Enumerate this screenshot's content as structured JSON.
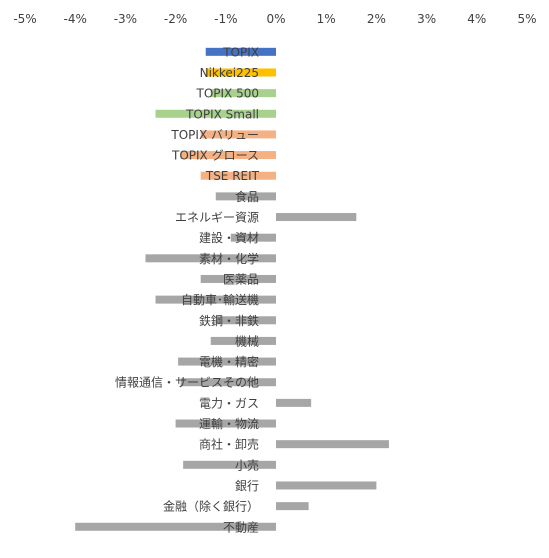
{
  "chart_data": {
    "type": "bar",
    "orientation": "horizontal",
    "title": "",
    "xlabel": "",
    "ylabel": "",
    "xlim": [
      -5,
      5
    ],
    "x_ticks": [
      -5,
      -4,
      -3,
      -2,
      -1,
      0,
      1,
      2,
      3,
      4,
      5
    ],
    "x_tick_labels": [
      "-5%",
      "-4%",
      "-3%",
      "-2%",
      "-1%",
      "0%",
      "1%",
      "2%",
      "3%",
      "4%",
      "5%"
    ],
    "x_axis_position": "top",
    "grid": false,
    "legend": "none",
    "unit": "%",
    "colors": {
      "TOPIX": "#4472C4",
      "Nikkei225": "#FFC000",
      "TOPIX 500": "#A9D18E",
      "TOPIX Small": "#A9D18E",
      "TOPIX バリュー": "#F4B183",
      "TOPIX グロース": "#F4B183",
      "TSE REIT": "#F4B183",
      "sectors": "#A6A6A6"
    },
    "categories": [
      "TOPIX",
      "Nikkei225",
      "TOPIX 500",
      "TOPIX Small",
      "TOPIX バリュー",
      "TOPIX グロース",
      "TSE REIT",
      "食品",
      "エネルギー資源",
      "建設・資材",
      "素材・化学",
      "医薬品",
      "自動車･輸送機",
      "鉄鋼・非鉄",
      "機械",
      "電機・精密",
      "情報通信・サービスその他",
      "電力・ガス",
      "運輸・物流",
      "商社・卸売",
      "小売",
      "銀行",
      "金融（除く銀行）",
      "不動産"
    ],
    "values": [
      -1.4,
      -1.4,
      -1.3,
      -2.4,
      -1.5,
      -1.9,
      -1.5,
      -1.2,
      1.6,
      -0.9,
      -2.6,
      -1.5,
      -2.4,
      -1.2,
      -1.3,
      -1.95,
      -1.9,
      0.7,
      -2.0,
      2.25,
      -1.85,
      2.0,
      0.65,
      -4.0
    ]
  }
}
